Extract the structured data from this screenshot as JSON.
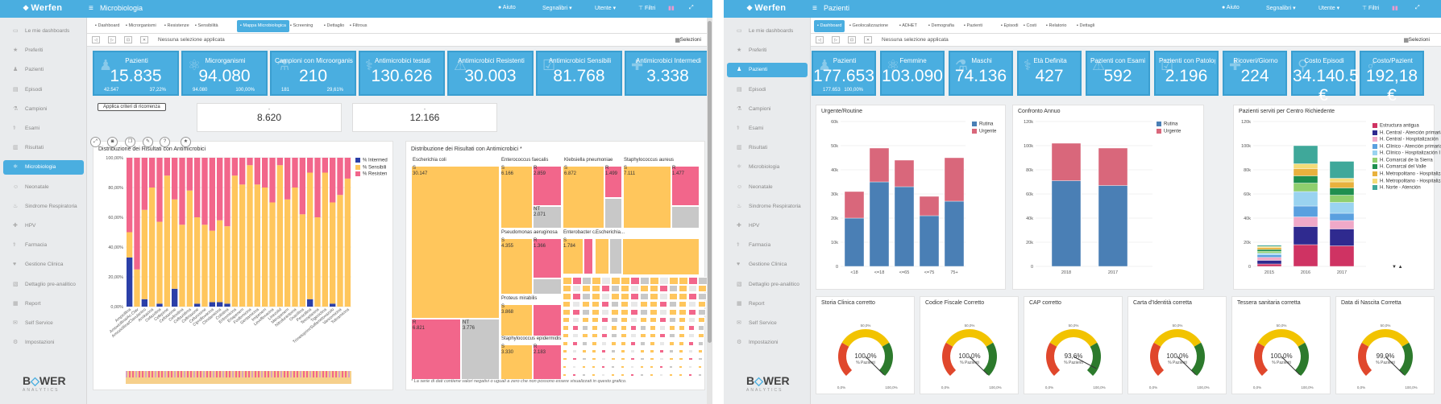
{
  "left": {
    "logo": "Werfen",
    "page_title": "Microbiologia",
    "topnav": [
      "Aiuto",
      "Segnalibri",
      "Utente",
      "Filtri"
    ],
    "sidebar": [
      "Le mie dashboards",
      "Preferiti",
      "Pazienti",
      "Episodi",
      "Campioni",
      "Esami",
      "Risultati",
      "Microbiologia",
      "Neonatale",
      "Sindrome Respiratoria",
      "HPV",
      "Farmacia",
      "Gestione Clinica",
      "Dettaglio pre-analitico",
      "Report",
      "Self Service",
      "Impostazioni"
    ],
    "sidebar_active": 7,
    "tabs": [
      "Dashboard",
      "Microrganismi",
      "Resistenze",
      "Sensibilità",
      "Mappa Microbiologica",
      "Screening",
      "Dettaglio",
      "Filtrous"
    ],
    "tab_active": 4,
    "no_selection": "Nessuna selezione applicata",
    "selections": "Selezioni",
    "kpis": [
      {
        "title": "Pazienti",
        "value": "15.835",
        "left": "42.547",
        "right": "37,22%"
      },
      {
        "title": "Microrganismi",
        "value": "94.080",
        "left": "94.080",
        "right": "100,00%"
      },
      {
        "title": "Campioni con Microorganismi",
        "value": "210",
        "left": "181",
        "right": "29,61%"
      },
      {
        "title": "Antimicrobici testati",
        "value": "130.626",
        "left": "",
        "right": ""
      },
      {
        "title": "Antimicrobici Resistenti",
        "value": "30.003",
        "left": "",
        "right": ""
      },
      {
        "title": "Antimicrobici Sensibili",
        "value": "81.768",
        "left": "",
        "right": ""
      },
      {
        "title": "Antimicrobici Intermedi",
        "value": "3.338",
        "left": "",
        "right": ""
      }
    ],
    "apply_button": "Applica criteri di ricorrenza",
    "kpi_white": [
      {
        "dash": "-",
        "value": "8.620"
      },
      {
        "dash": "-",
        "value": "12.166"
      }
    ],
    "bar_title": "Distribuzione dei Risultati con Antimicrobici",
    "bar_legend": [
      "% Intermed",
      "% Sensibili",
      "% Resisten"
    ],
    "bar_yticks": [
      "100,00%",
      "80,00%",
      "60,00%",
      "40,00%",
      "20,00%",
      "0,00%"
    ],
    "bar_xlabels": [
      "Ampicillina",
      "Amoxicillina/Ac.Clav",
      "Amoxicillina/Clavulanico",
      "Amikacina",
      "Cefazolina",
      "Cefepime",
      "Cefotaxime",
      "Cefoxitina",
      "Ceftazidima",
      "Ceftriaxone",
      "Cefuroxime",
      "Ciprofloxacina",
      "Clindamicina",
      "Colistina",
      "Eritromicina",
      "Ertapenem",
      "Fosfomicina",
      "Gentamicina",
      "Imipenem",
      "Levofloxacina",
      "Linezolid",
      "Meropenem",
      "Nitrofurantoina",
      "Oxacillina",
      "Penicillina",
      "Teicoplanina",
      "Tigeciclina",
      "Trimetoprim/Sulfametoxazolo",
      "Vancomicina",
      "Tobramicina"
    ],
    "tree_title": "Distribuzione dei Risultati con Antimicrobici *",
    "tree_note": "* La serie di dati contiene valori negativi o uguali a zero che non possono essere visualizzati in questo grafico.",
    "tree_items": [
      {
        "name": "Escherichia coli",
        "s": "S",
        "sv": "30.147",
        "r": "R",
        "rv": "6.821",
        "nt": "NT",
        "ntv": "3.776"
      },
      {
        "name": "Enterococcus faecalis",
        "s": "S",
        "sv": "6.166",
        "r": "R",
        "rv": "2.859",
        "nt": "NT",
        "ntv": "2.071"
      },
      {
        "name": "Klebsiella pneumoniae",
        "s": "S",
        "sv": "6.872",
        "r": "R",
        "rv": "1.499"
      },
      {
        "name": "Staphylococcus aureus",
        "s": "S",
        "sv": "7.111",
        "r": "R",
        "rv": "1.477"
      },
      {
        "name": "Pseudomonas aeruginosa",
        "s": "S",
        "sv": "4.355",
        "r": "R",
        "rv": "1.366"
      },
      {
        "name": "Enterobacter c...",
        "s": "S",
        "sv": "1.784"
      },
      {
        "name": "Escherichia..."
      },
      {
        "name": "Proteus mirabilis",
        "s": "S",
        "sv": "3.868"
      },
      {
        "name": "Staphylococcus epidermidis",
        "s": "S",
        "sv": "3.330",
        "r": "R",
        "rv": "2.183"
      }
    ]
  },
  "right": {
    "logo": "Werfen",
    "page_title": "Pazienti",
    "topnav": [
      "Aiuto",
      "Segnalibri",
      "Utente",
      "Filtri"
    ],
    "sidebar": [
      "Le mie dashboards",
      "Preferiti",
      "Pazienti",
      "Episodi",
      "Campioni",
      "Esami",
      "Risultati",
      "Microbiologia",
      "Neonatale",
      "Sindrome Respiratoria",
      "HPV",
      "Farmacia",
      "Gestione Clinica",
      "Dettaglio pre-analitico",
      "Report",
      "Self Service",
      "Impostazioni"
    ],
    "sidebar_active": 2,
    "tabs": [
      "Dashboard",
      "Geolocalizzazione",
      "ADHET",
      "Demografia",
      "Pazienti",
      "Episodi",
      "Costi",
      "Relatorio",
      "Dettagli"
    ],
    "tab_active": 0,
    "no_selection": "Nessuna selezione applicata",
    "selections": "Selezioni",
    "kpis": [
      {
        "title": "Pazienti",
        "value": "177.653",
        "left": "177.653",
        "right": "100,00%"
      },
      {
        "title": "Femmine",
        "value": "103.090",
        "left": "",
        "right": ""
      },
      {
        "title": "Maschi",
        "value": "74.136",
        "left": "",
        "right": ""
      },
      {
        "title": "Età Definita",
        "value": "427",
        "left": "",
        "right": ""
      },
      {
        "title": "Pazienti con Esami Critici",
        "value": "592",
        "left": "",
        "right": ""
      },
      {
        "title": "Pazienti con Patologie",
        "value": "2.196",
        "left": "",
        "right": ""
      },
      {
        "title": "Ricoveri/Giorno",
        "value": "224",
        "left": "",
        "right": ""
      },
      {
        "title": "Costo Episodi",
        "value": "34.140.577 €",
        "left": "",
        "right": ""
      },
      {
        "title": "Costo/Pazient",
        "value": "192,18 €",
        "left": "",
        "right": ""
      }
    ],
    "urg_title": "Urgente/Routine",
    "urg_legend": [
      "Rutina",
      "Urgente"
    ],
    "urg_yticks": [
      "60k",
      "50k",
      "40k",
      "30k",
      "20k",
      "10k",
      "0"
    ],
    "conf_title": "Confronto Annuo",
    "conf_legend": [
      "Rutina",
      "Urgente"
    ],
    "conf_yticks": [
      "120k",
      "100k",
      "80k",
      "60k",
      "40k",
      "20k",
      "0"
    ],
    "centro_title": "Pazienti serviti per Centro Richiedente",
    "centro_yticks": [
      "120k",
      "100k",
      "80k",
      "60k",
      "40k",
      "20k",
      "0"
    ],
    "centro_legend": [
      "Estructura antigua",
      "H. Central - Atención primaria",
      "H. Central - Hospitalización",
      "H. Clínico - Atención primaria",
      "H. Clínico - Hospitalización I",
      "H. Comarcal de la Sierra",
      "H. Comarcal del Valle",
      "H. Metropolitano - Hospitalización I",
      "H. Metropolitano - Hospitalización II",
      "H. Norte - Atención"
    ],
    "legend_nav": "▼ ▲",
    "gauges": [
      {
        "title": "Storia Clinica corretto",
        "value": "100,0%",
        "sub": "% Pazienti"
      },
      {
        "title": "Codice Fiscale Corretto",
        "value": "100,0%",
        "sub": "% Pazienti"
      },
      {
        "title": "CAP corretto",
        "value": "93,6%",
        "sub": "% Pazienti"
      },
      {
        "title": "Carta d'Identità corretta",
        "value": "100,0%",
        "sub": "% Pazienti"
      },
      {
        "title": "Tessera sanitaria corretta",
        "value": "100,0%",
        "sub": "% Pazienti"
      },
      {
        "title": "Data di Nascita Corretta",
        "value": "99,9%",
        "sub": "% Pazienti"
      }
    ],
    "gauge_ticks": {
      "min": "0,0%",
      "mid": "50,0%",
      "max": "100,0%"
    }
  },
  "colors": {
    "accent": "#4aaee0",
    "rutina": "#4a7fb5",
    "urgente": "#d9677b",
    "intermed": "#2b3fa8",
    "sensibili": "#ffc65c",
    "resisten": "#f2668b",
    "grey": "#c8c8c8"
  },
  "chart_data": [
    {
      "type": "bar",
      "title": "Distribuzione dei Risultati con Antimicrobici",
      "stacked": true,
      "ylim": [
        0,
        100
      ],
      "series": [
        {
          "name": "% Intermed",
          "values": [
            33,
            0,
            5,
            0,
            2,
            0,
            12,
            0,
            0,
            2,
            0,
            3,
            3,
            2,
            0,
            0,
            0,
            0,
            0,
            0,
            0,
            0,
            0,
            0,
            5,
            0,
            0,
            2,
            0,
            0
          ]
        },
        {
          "name": "% Sensibili",
          "values": [
            17,
            25,
            60,
            80,
            55,
            88,
            60,
            55,
            78,
            58,
            55,
            48,
            55,
            52,
            88,
            82,
            95,
            82,
            80,
            70,
            95,
            72,
            80,
            62,
            85,
            60,
            90,
            68,
            75,
            86
          ]
        },
        {
          "name": "% Resisten",
          "values": [
            50,
            75,
            35,
            20,
            43,
            12,
            28,
            45,
            22,
            40,
            45,
            49,
            42,
            46,
            12,
            18,
            5,
            18,
            20,
            30,
            5,
            28,
            20,
            38,
            10,
            40,
            10,
            30,
            25,
            14
          ]
        }
      ]
    },
    {
      "type": "bar",
      "title": "Urgente/Routine",
      "categories": [
        "<18",
        "<=18",
        "<=65",
        "<=75",
        "75+"
      ],
      "stacked": true,
      "ylim": [
        0,
        60000
      ],
      "series": [
        {
          "name": "Rutina",
          "values": [
            20000,
            35000,
            33000,
            21000,
            27000
          ]
        },
        {
          "name": "Urgente",
          "values": [
            11000,
            14000,
            11000,
            8000,
            18000
          ]
        }
      ]
    },
    {
      "type": "bar",
      "title": "Confronto Annuo",
      "categories": [
        "2018",
        "2017"
      ],
      "stacked": true,
      "ylim": [
        0,
        120000
      ],
      "series": [
        {
          "name": "Rutina",
          "values": [
            71000,
            67000
          ]
        },
        {
          "name": "Urgente",
          "values": [
            31000,
            31000
          ]
        }
      ]
    },
    {
      "type": "bar",
      "title": "Pazienti serviti per Centro Richiedente",
      "categories": [
        "2015",
        "2016",
        "2017"
      ],
      "stacked": true,
      "ylim": [
        0,
        120000
      ],
      "series": [
        {
          "name": "Estructura antigua",
          "values": [
            2000,
            18000,
            17000
          ]
        },
        {
          "name": "H. Central - Atención primaria",
          "values": [
            3000,
            15000,
            14000
          ]
        },
        {
          "name": "H. Central - Hospitalización",
          "values": [
            2500,
            8000,
            7000
          ]
        },
        {
          "name": "H. Clínico - Atención primaria",
          "values": [
            2000,
            9000,
            6000
          ]
        },
        {
          "name": "H. Clínico - Hospitalización I",
          "values": [
            1500,
            12000,
            9000
          ]
        },
        {
          "name": "H. Comarcal de la Sierra",
          "values": [
            1500,
            7000,
            6000
          ]
        },
        {
          "name": "H. Comarcal del Valle",
          "values": [
            1500,
            6000,
            6000
          ]
        },
        {
          "name": "H. Metropolitano - Hospitalización I",
          "values": [
            1500,
            6000,
            5000
          ]
        },
        {
          "name": "H. Metropolitano - Hospitalización II",
          "values": [
            1000,
            4000,
            3000
          ]
        },
        {
          "name": "H. Norte - Atención",
          "values": [
            1000,
            15000,
            14000
          ]
        }
      ]
    },
    {
      "type": "gauge",
      "title": "Storia Clinica corretto",
      "value": 100.0
    },
    {
      "type": "gauge",
      "title": "Codice Fiscale Corretto",
      "value": 100.0
    },
    {
      "type": "gauge",
      "title": "CAP corretto",
      "value": 93.6
    },
    {
      "type": "gauge",
      "title": "Carta d'Identità corretta",
      "value": 100.0
    },
    {
      "type": "gauge",
      "title": "Tessera sanitaria corretta",
      "value": 100.0
    },
    {
      "type": "gauge",
      "title": "Data di Nascita Corretta",
      "value": 99.9
    }
  ]
}
